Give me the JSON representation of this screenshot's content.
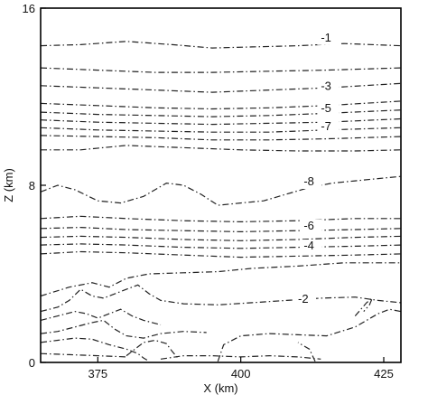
{
  "chart_data": {
    "type": "line",
    "title": "",
    "xlabel": "X (km)",
    "ylabel": "Z (km)",
    "xlim": [
      365,
      428
    ],
    "ylim": [
      0,
      16
    ],
    "x_ticks": [
      375,
      400,
      425
    ],
    "x_tick_labels": [
      "375",
      "400",
      "425"
    ],
    "y_tick_labels": [
      {
        "value": 0,
        "label": "0"
      },
      {
        "value": 8,
        "label": "8"
      },
      {
        "value": 16,
        "label": "16"
      }
    ],
    "grid": false,
    "series": [
      {
        "points": [
          [
            365,
            14.3
          ],
          [
            372,
            14.35
          ],
          [
            380,
            14.5
          ],
          [
            388,
            14.35
          ],
          [
            395,
            14.2
          ],
          [
            402,
            14.25
          ],
          [
            410,
            14.3
          ],
          [
            418,
            14.4
          ],
          [
            428,
            14.3
          ]
        ]
      },
      {
        "points": [
          [
            365,
            13.3
          ],
          [
            375,
            13.2
          ],
          [
            385,
            13.1
          ],
          [
            395,
            13.1
          ],
          [
            405,
            13.15
          ],
          [
            415,
            13.2
          ],
          [
            428,
            13.3
          ]
        ]
      },
      {
        "points": [
          [
            365,
            12.5
          ],
          [
            375,
            12.4
          ],
          [
            385,
            12.3
          ],
          [
            395,
            12.2
          ],
          [
            405,
            12.3
          ],
          [
            415,
            12.4
          ],
          [
            428,
            12.6
          ]
        ]
      },
      {
        "points": [
          [
            365,
            11.7
          ],
          [
            375,
            11.6
          ],
          [
            385,
            11.5
          ],
          [
            395,
            11.45
          ],
          [
            405,
            11.5
          ],
          [
            415,
            11.6
          ],
          [
            428,
            11.8
          ]
        ]
      },
      {
        "points": [
          [
            365,
            11.3
          ],
          [
            375,
            11.2
          ],
          [
            385,
            11.15
          ],
          [
            395,
            11.1
          ],
          [
            405,
            11.15
          ],
          [
            415,
            11.25
          ],
          [
            428,
            11.4
          ]
        ]
      },
      {
        "points": [
          [
            365,
            10.95
          ],
          [
            375,
            10.85
          ],
          [
            385,
            10.8
          ],
          [
            395,
            10.75
          ],
          [
            405,
            10.8
          ],
          [
            415,
            10.85
          ],
          [
            428,
            11.0
          ]
        ]
      },
      {
        "points": [
          [
            365,
            10.6
          ],
          [
            375,
            10.5
          ],
          [
            385,
            10.45
          ],
          [
            395,
            10.4
          ],
          [
            405,
            10.4
          ],
          [
            415,
            10.5
          ],
          [
            428,
            10.6
          ]
        ]
      },
      {
        "points": [
          [
            365,
            10.25
          ],
          [
            375,
            10.2
          ],
          [
            385,
            10.15
          ],
          [
            395,
            10.05
          ],
          [
            405,
            10.05
          ],
          [
            415,
            10.1
          ],
          [
            428,
            10.2
          ]
        ]
      },
      {
        "points": [
          [
            365,
            9.6
          ],
          [
            372,
            9.6
          ],
          [
            380,
            9.8
          ],
          [
            390,
            9.7
          ],
          [
            400,
            9.6
          ],
          [
            410,
            9.55
          ],
          [
            420,
            9.55
          ],
          [
            428,
            9.6
          ]
        ]
      },
      {
        "points": [
          [
            365,
            7.7
          ],
          [
            368,
            8.0
          ],
          [
            371,
            7.8
          ],
          [
            375,
            7.3
          ],
          [
            379,
            7.2
          ],
          [
            383,
            7.5
          ],
          [
            387,
            8.1
          ],
          [
            390,
            8.0
          ],
          [
            393,
            7.6
          ],
          [
            396,
            7.1
          ],
          [
            400,
            7.2
          ],
          [
            404,
            7.3
          ],
          [
            408,
            7.6
          ],
          [
            412,
            7.9
          ],
          [
            416,
            8.1
          ],
          [
            420,
            8.2
          ],
          [
            424,
            8.3
          ],
          [
            428,
            8.4
          ]
        ]
      },
      {
        "points": [
          [
            365,
            6.5
          ],
          [
            372,
            6.6
          ],
          [
            380,
            6.5
          ],
          [
            390,
            6.4
          ],
          [
            400,
            6.35
          ],
          [
            410,
            6.4
          ],
          [
            420,
            6.5
          ],
          [
            428,
            6.5
          ]
        ]
      },
      {
        "points": [
          [
            365,
            6.05
          ],
          [
            372,
            6.1
          ],
          [
            380,
            6.0
          ],
          [
            390,
            5.95
          ],
          [
            400,
            5.9
          ],
          [
            410,
            5.95
          ],
          [
            420,
            6.0
          ],
          [
            428,
            6.05
          ]
        ]
      },
      {
        "points": [
          [
            365,
            5.65
          ],
          [
            372,
            5.7
          ],
          [
            380,
            5.65
          ],
          [
            390,
            5.55
          ],
          [
            400,
            5.5
          ],
          [
            410,
            5.55
          ],
          [
            420,
            5.65
          ],
          [
            428,
            5.7
          ]
        ]
      },
      {
        "points": [
          [
            365,
            5.3
          ],
          [
            372,
            5.35
          ],
          [
            380,
            5.3
          ],
          [
            390,
            5.2
          ],
          [
            400,
            5.15
          ],
          [
            410,
            5.2
          ],
          [
            420,
            5.25
          ],
          [
            428,
            5.3
          ]
        ]
      },
      {
        "points": [
          [
            365,
            4.9
          ],
          [
            372,
            5.0
          ],
          [
            380,
            4.95
          ],
          [
            390,
            4.85
          ],
          [
            400,
            4.75
          ],
          [
            410,
            4.8
          ],
          [
            420,
            4.85
          ],
          [
            428,
            4.9
          ]
        ]
      },
      {
        "points": [
          [
            365,
            3.0
          ],
          [
            370,
            3.4
          ],
          [
            374,
            3.6
          ],
          [
            377,
            3.4
          ],
          [
            380,
            3.8
          ],
          [
            384,
            4.0
          ],
          [
            390,
            4.05
          ],
          [
            396,
            4.1
          ],
          [
            402,
            4.25
          ],
          [
            410,
            4.35
          ],
          [
            418,
            4.5
          ],
          [
            428,
            4.5
          ]
        ]
      },
      {
        "points": [
          [
            365,
            2.3
          ],
          [
            368,
            2.5
          ],
          [
            370,
            2.8
          ],
          [
            372,
            3.3
          ],
          [
            374,
            3.0
          ],
          [
            376,
            2.9
          ],
          [
            380,
            3.3
          ],
          [
            382,
            3.5
          ],
          [
            384,
            3.1
          ],
          [
            386,
            2.8
          ],
          [
            390,
            2.65
          ],
          [
            396,
            2.6
          ],
          [
            402,
            2.7
          ],
          [
            408,
            2.8
          ],
          [
            414,
            2.9
          ],
          [
            420,
            2.95
          ],
          [
            424,
            2.8
          ],
          [
            428,
            2.7
          ]
        ]
      },
      {
        "points": [
          [
            365,
            1.9
          ],
          [
            368,
            2.1
          ],
          [
            371,
            2.3
          ],
          [
            373,
            2.2
          ],
          [
            375,
            2.0
          ],
          [
            377,
            2.2
          ],
          [
            379,
            2.4
          ],
          [
            381,
            2.1
          ],
          [
            383,
            1.9
          ],
          [
            386,
            1.7
          ]
        ]
      },
      {
        "points": [
          [
            365,
            1.3
          ],
          [
            368,
            1.4
          ],
          [
            371,
            1.6
          ],
          [
            374,
            1.8
          ],
          [
            376,
            1.9
          ],
          [
            378,
            1.5
          ],
          [
            380,
            1.2
          ],
          [
            383,
            1.1
          ],
          [
            386,
            1.3
          ],
          [
            390,
            1.4
          ],
          [
            394,
            1.35
          ]
        ]
      },
      {
        "points": [
          [
            365,
            0.9
          ],
          [
            368,
            1.0
          ],
          [
            371,
            1.1
          ],
          [
            374,
            1.05
          ],
          [
            377,
            0.8
          ],
          [
            380,
            0.6
          ],
          [
            382,
            0.4
          ],
          [
            383,
            0.2
          ],
          [
            384,
            0.05
          ]
        ]
      },
      {
        "points": [
          [
            380,
            0.3
          ],
          [
            383,
            0.9
          ],
          [
            385,
            1.0
          ],
          [
            387,
            0.85
          ],
          [
            388,
            0.5
          ],
          [
            389,
            0.2
          ]
        ]
      },
      {
        "points": [
          [
            386,
            0.15
          ],
          [
            390,
            0.3
          ],
          [
            395,
            0.3
          ],
          [
            400,
            0.25
          ],
          [
            405,
            0.3
          ],
          [
            410,
            0.25
          ],
          [
            414,
            0.15
          ]
        ]
      },
      {
        "points": [
          [
            396,
            0.05
          ],
          [
            397,
            0.8
          ],
          [
            400,
            1.2
          ],
          [
            405,
            1.3
          ],
          [
            410,
            1.25
          ],
          [
            415,
            1.2
          ],
          [
            420,
            1.6
          ],
          [
            424,
            2.2
          ],
          [
            426,
            2.4
          ],
          [
            428,
            2.3
          ]
        ]
      },
      {
        "points": [
          [
            420,
            2.1
          ],
          [
            421,
            2.4
          ],
          [
            422,
            2.7
          ],
          [
            423,
            2.9
          ],
          [
            422.5,
            2.6
          ],
          [
            421.5,
            2.3
          ]
        ]
      },
      {
        "points": [
          [
            413,
            0.05
          ],
          [
            412,
            0.6
          ],
          [
            410,
            0.9
          ]
        ]
      },
      {
        "points": [
          [
            365,
            0.4
          ],
          [
            370,
            0.35
          ],
          [
            375,
            0.3
          ],
          [
            380,
            0.25
          ]
        ]
      }
    ],
    "contour_labels": [
      {
        "text": "-1",
        "x": 414,
        "y": 14.5
      },
      {
        "text": "-3",
        "x": 414,
        "y": 12.3
      },
      {
        "text": "-5",
        "x": 414,
        "y": 11.3
      },
      {
        "text": "-7",
        "x": 414,
        "y": 10.5
      },
      {
        "text": "-8",
        "x": 411,
        "y": 8.0
      },
      {
        "text": "-6",
        "x": 411,
        "y": 6.0
      },
      {
        "text": "-4",
        "x": 411,
        "y": 5.1
      },
      {
        "text": "-2",
        "x": 410,
        "y": 2.7
      }
    ]
  }
}
